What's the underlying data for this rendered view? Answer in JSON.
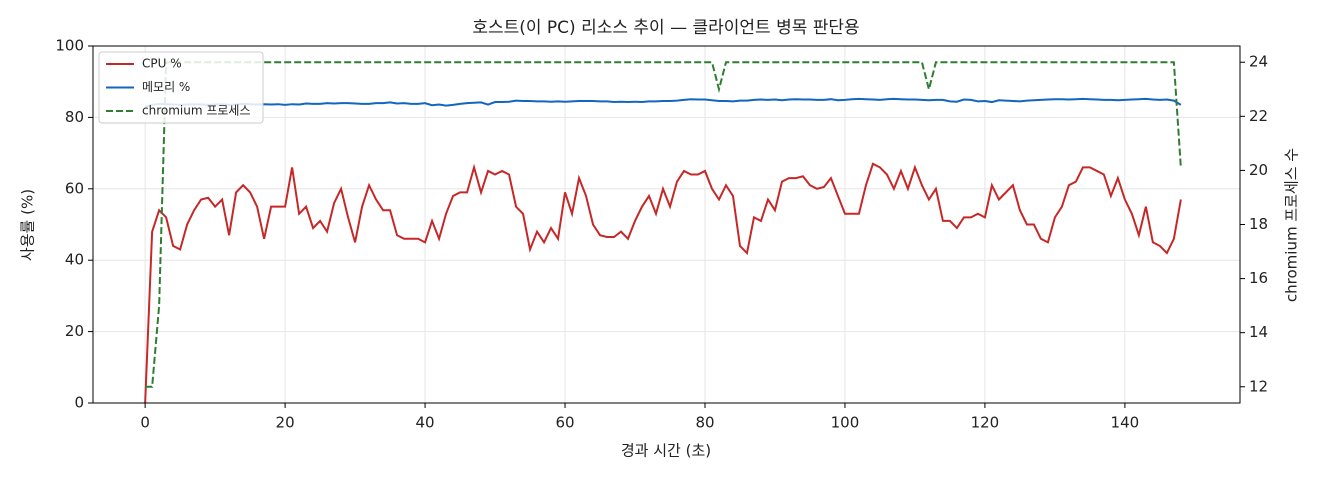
{
  "chart_data": {
    "type": "line",
    "title": "호스트(이 PC) 리소스 추이 — 클라이언트 병목 판단용",
    "x_label": "경과 시간 (초)",
    "y_label": "사용률 (%)",
    "y2_label": "chromium 프로세스 수",
    "xlim": [
      -7.45,
      156.45
    ],
    "xticks": [
      0,
      20,
      40,
      60,
      80,
      100,
      120,
      140
    ],
    "ylim": [
      0,
      100
    ],
    "yticks": [
      0,
      20,
      40,
      60,
      80,
      100
    ],
    "y2lim": [
      11.4,
      24.6
    ],
    "y2ticks": [
      12,
      14,
      16,
      18,
      20,
      22,
      24
    ],
    "grid": true,
    "legend": "upper-left",
    "x": [
      0,
      1,
      2,
      3,
      4,
      5,
      6,
      7,
      8,
      9,
      10,
      11,
      12,
      13,
      14,
      15,
      16,
      17,
      18,
      19,
      20,
      21,
      22,
      23,
      24,
      25,
      26,
      27,
      28,
      29,
      30,
      31,
      32,
      33,
      34,
      35,
      36,
      37,
      38,
      39,
      40,
      41,
      42,
      43,
      44,
      45,
      46,
      47,
      48,
      49,
      50,
      51,
      52,
      53,
      54,
      55,
      56,
      57,
      58,
      59,
      60,
      61,
      62,
      63,
      64,
      65,
      66,
      67,
      68,
      69,
      70,
      71,
      72,
      73,
      74,
      75,
      76,
      77,
      78,
      79,
      80,
      81,
      82,
      83,
      84,
      85,
      86,
      87,
      88,
      89,
      90,
      91,
      92,
      93,
      94,
      95,
      96,
      97,
      98,
      99,
      100,
      101,
      102,
      103,
      104,
      105,
      106,
      107,
      108,
      109,
      110,
      111,
      112,
      113,
      114,
      115,
      116,
      117,
      118,
      119,
      120,
      121,
      122,
      123,
      124,
      125,
      126,
      127,
      128,
      129,
      130,
      131,
      132,
      133,
      134,
      135,
      136,
      137,
      138,
      139,
      140,
      141,
      142,
      143,
      144,
      145,
      146,
      147,
      148
    ],
    "series": [
      {
        "name": "CPU %",
        "color": "#c62828",
        "dash": false,
        "values": [
          0,
          48,
          54,
          52,
          44,
          43,
          50,
          54,
          57,
          57.5,
          55,
          57,
          47,
          59,
          61,
          59,
          55,
          46,
          55,
          55,
          55,
          66,
          53,
          55,
          49,
          51,
          48,
          56,
          60,
          52,
          45,
          55,
          61,
          57,
          54,
          54,
          47,
          46,
          46,
          46,
          45,
          51,
          46,
          53,
          58,
          59,
          59,
          66,
          59,
          65,
          64,
          65,
          64,
          55,
          53,
          43,
          48,
          45,
          49,
          46,
          59,
          53,
          63,
          58,
          50,
          47,
          46.5,
          46.5,
          48,
          46,
          51,
          55,
          58,
          53,
          60,
          55,
          62,
          65,
          64,
          64,
          65,
          60,
          57,
          61,
          58,
          44,
          42,
          52,
          51,
          57,
          54,
          62,
          63,
          63,
          63.5,
          61,
          60,
          60.5,
          63,
          58,
          53,
          53,
          53,
          61,
          67,
          66,
          64,
          60,
          65,
          60,
          66,
          61,
          57,
          60,
          51,
          51,
          49,
          52,
          52,
          53,
          52,
          61,
          57,
          59,
          61,
          54,
          50,
          50,
          46,
          45,
          52,
          55,
          61,
          62,
          66,
          66,
          65,
          64,
          58,
          63,
          57,
          53,
          47,
          55,
          45,
          44,
          42,
          46,
          57
        ]
      },
      {
        "name": "메모리 %",
        "color": "#1565c0",
        "dash": false,
        "values": [
          83,
          83.5,
          83.8,
          83.7,
          83.6,
          83.5,
          83.6,
          83.7,
          83.6,
          83.5,
          83.6,
          83.7,
          83.5,
          83.6,
          83.8,
          83.7,
          83.6,
          83.7,
          83.6,
          83.7,
          83.5,
          83.7,
          83.6,
          83.9,
          83.8,
          83.8,
          84,
          83.9,
          84,
          84,
          83.9,
          83.8,
          83.8,
          84,
          84,
          84.2,
          83.9,
          84,
          83.8,
          83.8,
          84,
          83.4,
          83.6,
          83.3,
          83.5,
          83.8,
          84,
          84.1,
          84.2,
          83.6,
          84.3,
          84.3,
          84.4,
          84.7,
          84.6,
          84.6,
          84.5,
          84.5,
          84.4,
          84.5,
          84.4,
          84.5,
          84.6,
          84.6,
          84.6,
          84.5,
          84.5,
          84.3,
          84.4,
          84.3,
          84.4,
          84.3,
          84.5,
          84.5,
          84.6,
          84.6,
          84.7,
          84.9,
          85.1,
          85,
          85,
          84.8,
          84.6,
          84.6,
          84.5,
          84.7,
          84.7,
          84.9,
          85,
          84.9,
          85,
          84.8,
          85,
          85.1,
          85,
          85,
          84.9,
          84.9,
          85.1,
          84.8,
          84.9,
          85.1,
          85.2,
          85.1,
          85,
          84.9,
          85.1,
          85.2,
          85.1,
          85,
          85,
          84.9,
          84.8,
          84.9,
          84.9,
          84.5,
          84.4,
          85,
          84.9,
          84.5,
          84.6,
          84.3,
          84.8,
          84.7,
          84.6,
          84.5,
          84.7,
          84.8,
          84.9,
          85,
          85.1,
          85.1,
          85,
          85.1,
          85.2,
          85.1,
          85,
          84.9,
          84.9,
          84.8,
          84.9,
          85,
          85.1,
          85.2,
          85,
          84.9,
          85,
          84.7,
          83.5
        ]
      },
      {
        "name": "chromium 프로세스",
        "color": "#2e7d32",
        "dash": true,
        "axis": "y2",
        "values": [
          12,
          12,
          15,
          24,
          24,
          24,
          24,
          24,
          24,
          24,
          24,
          24,
          24,
          24,
          24,
          24,
          24,
          24,
          24,
          24,
          24,
          24,
          24,
          24,
          24,
          24,
          24,
          24,
          24,
          24,
          24,
          24,
          24,
          24,
          24,
          24,
          24,
          24,
          24,
          24,
          24,
          24,
          24,
          24,
          24,
          24,
          24,
          24,
          24,
          24,
          24,
          24,
          24,
          24,
          24,
          24,
          24,
          24,
          24,
          24,
          24,
          24,
          24,
          24,
          24,
          24,
          24,
          24,
          24,
          24,
          24,
          24,
          24,
          24,
          24,
          24,
          24,
          24,
          24,
          24,
          24,
          24,
          23,
          24,
          24,
          24,
          24,
          24,
          24,
          24,
          24,
          24,
          24,
          24,
          24,
          24,
          24,
          24,
          24,
          24,
          24,
          24,
          24,
          24,
          24,
          24,
          24,
          24,
          24,
          24,
          24,
          24,
          23,
          24,
          24,
          24,
          24,
          24,
          24,
          24,
          24,
          24,
          24,
          24,
          24,
          24,
          24,
          24,
          24,
          24,
          24,
          24,
          24,
          24,
          24,
          24,
          24,
          24,
          24,
          24,
          24,
          24,
          24,
          24,
          24,
          24,
          24,
          24,
          20.1
        ]
      }
    ]
  }
}
